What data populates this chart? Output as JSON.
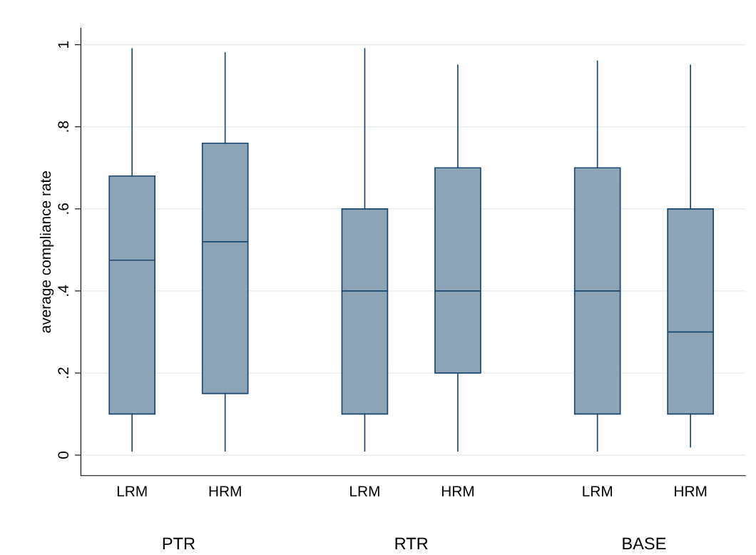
{
  "chart_data": {
    "type": "box",
    "ylabel": "average compliance rate",
    "categories": [
      "LRM",
      "HRM",
      "LRM",
      "HRM",
      "LRM",
      "HRM"
    ],
    "boxes": [
      {
        "low": 0.01,
        "q1": 0.1,
        "median": 0.475,
        "q3": 0.68,
        "high": 0.99
      },
      {
        "low": 0.01,
        "q1": 0.15,
        "median": 0.52,
        "q3": 0.76,
        "high": 0.98
      },
      {
        "low": 0.01,
        "q1": 0.1,
        "median": 0.4,
        "q3": 0.6,
        "high": 0.99
      },
      {
        "low": 0.01,
        "q1": 0.2,
        "median": 0.4,
        "q3": 0.7,
        "high": 0.95
      },
      {
        "low": 0.01,
        "q1": 0.1,
        "median": 0.4,
        "q3": 0.7,
        "high": 0.96
      },
      {
        "low": 0.02,
        "q1": 0.1,
        "median": 0.3,
        "q3": 0.6,
        "high": 0.95
      }
    ],
    "color": "#8da4b6",
    "annotations": [
      "PTR",
      "RTR",
      "BASE"
    ],
    "ylim": [
      -0.05,
      1.04
    ],
    "yticks": [
      0,
      {
        "value": 0.2,
        "label": ".2"
      },
      {
        "value": 0.4,
        "label": ".4"
      },
      {
        "value": 0.6,
        "label": ".6"
      },
      {
        "value": 0.8,
        "label": ".8"
      },
      1
    ],
    "grid": "y"
  }
}
